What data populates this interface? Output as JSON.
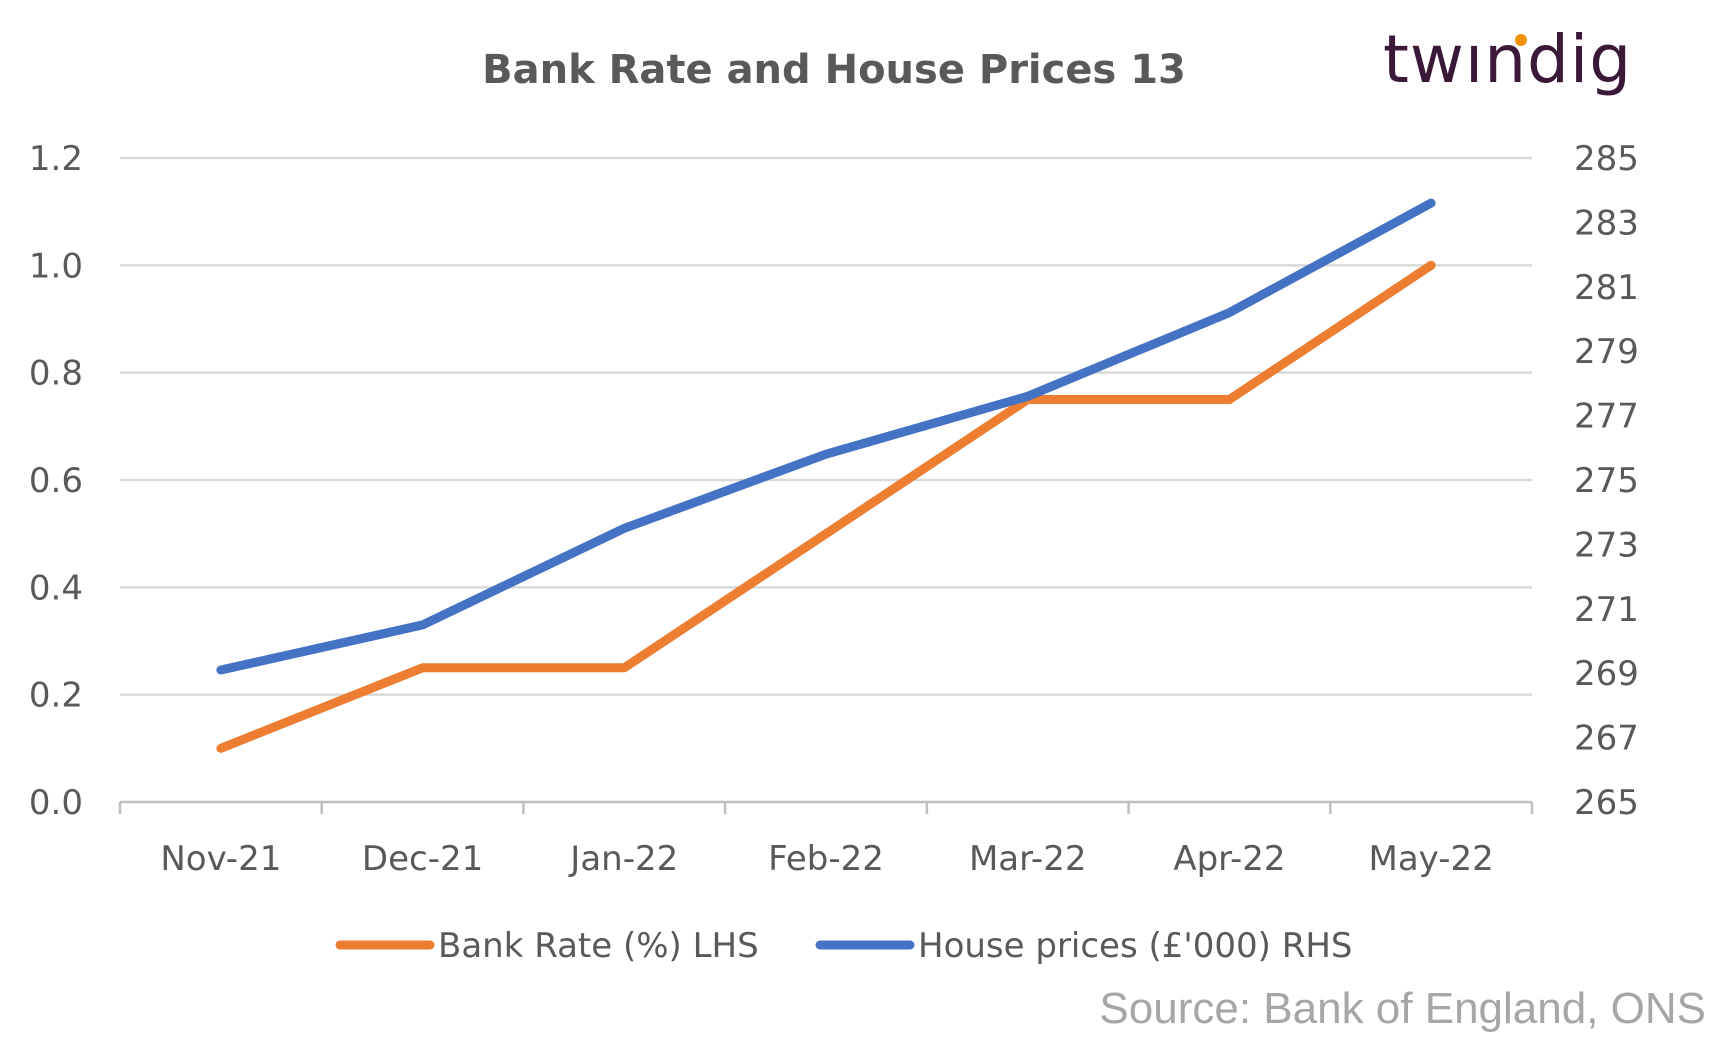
{
  "logo": {
    "text_pre": "tw",
    "text_i": "ı",
    "text_post": "ndig",
    "dot_color": "#f39200",
    "color": "#3a1838"
  },
  "source": "Source: Bank of England, ONS",
  "chart_data": {
    "type": "line",
    "title": "Bank Rate and House Prices 13",
    "categories": [
      "Nov-21",
      "Dec-21",
      "Jan-22",
      "Feb-22",
      "Mar-22",
      "Apr-22",
      "May-22"
    ],
    "y_left": {
      "ticks": [
        "0.0",
        "0.2",
        "0.4",
        "0.6",
        "0.8",
        "1.0",
        "1.2"
      ],
      "ylim": [
        0,
        1.2
      ]
    },
    "y_right": {
      "ticks": [
        "265",
        "267",
        "269",
        "271",
        "273",
        "275",
        "277",
        "279",
        "281",
        "283",
        "285"
      ],
      "ylim": [
        265,
        285
      ]
    },
    "grid": true,
    "legend_position": "bottom",
    "series": [
      {
        "name": "Bank Rate (%) LHS",
        "axis": "left",
        "color": "#ed7d31",
        "values": [
          0.1,
          0.25,
          0.25,
          0.5,
          0.75,
          0.75,
          1.0
        ]
      },
      {
        "name": "House prices (£'000) RHS",
        "axis": "right",
        "color": "#4472c4",
        "values": [
          269.1,
          270.5,
          273.5,
          275.8,
          277.6,
          280.2,
          283.6
        ]
      }
    ]
  }
}
